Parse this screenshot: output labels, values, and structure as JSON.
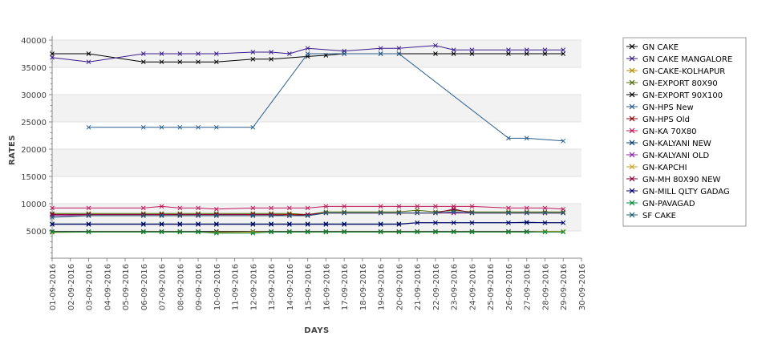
{
  "chart_data": {
    "type": "line",
    "xlabel": "DAYS",
    "ylabel": "RATES",
    "ylim": [
      0,
      40000
    ],
    "y_ticks": [
      5000,
      10000,
      15000,
      20000,
      25000,
      30000,
      35000,
      40000
    ],
    "x_tick_labels": [
      "01-09-2016",
      "02-09-2016",
      "03-09-2016",
      "04-09-2016",
      "05-09-2016",
      "06-09-2016",
      "07-09-2016",
      "08-09-2016",
      "09-09-2016",
      "10-09-2016",
      "11-09-2016",
      "12-09-2016",
      "13-09-2016",
      "14-09-2016",
      "15-09-2016",
      "16-09-2016",
      "17-09-2016",
      "18-09-2016",
      "19-09-2016",
      "20-09-2016",
      "21-09-2016",
      "22-09-2016",
      "23-09-2016",
      "24-09-2016",
      "25-09-2016",
      "26-09-2016",
      "27-09-2016",
      "28-09-2016",
      "29-09-2016",
      "30-09-2016"
    ],
    "grid": "alternating horizontal bands",
    "legend_position": "right",
    "series": [
      {
        "name": "GN CAKE",
        "color": "#000000",
        "days": [
          1,
          3,
          6,
          7,
          8,
          9,
          10,
          12,
          13,
          15,
          16,
          17,
          19,
          20,
          22,
          23,
          24,
          26,
          27,
          28,
          29
        ],
        "values": [
          37500,
          37500,
          36000,
          36000,
          36000,
          36000,
          36000,
          36500,
          36500,
          37000,
          37200,
          37500,
          37500,
          37500,
          37500,
          37500,
          37500,
          37500,
          37500,
          37500,
          37500
        ]
      },
      {
        "name": "GN CAKE MANGALORE",
        "color": "#3b1e8c",
        "days": [
          1,
          3,
          6,
          7,
          8,
          9,
          10,
          12,
          13,
          14,
          15,
          17,
          19,
          20,
          22,
          23,
          24,
          26,
          27,
          28,
          29
        ],
        "values": [
          36800,
          36000,
          37500,
          37500,
          37500,
          37500,
          37500,
          37800,
          37800,
          37500,
          38500,
          38000,
          38500,
          38500,
          39000,
          38200,
          38200,
          38200,
          38200,
          38200,
          38200
        ]
      },
      {
        "name": "GN-CAKE-KOLHAPUR",
        "color": "#b58a00",
        "days": [
          1,
          3,
          6,
          7,
          8,
          9,
          10,
          12,
          13,
          14,
          15,
          16,
          17,
          19,
          20,
          21,
          22,
          23,
          24,
          26,
          27,
          28,
          29
        ],
        "values": [
          4800,
          4800,
          4800,
          4800,
          4800,
          4800,
          4800,
          4800,
          4800,
          4800,
          4800,
          4800,
          4800,
          4800,
          4800,
          4800,
          4800,
          4800,
          4800,
          4800,
          4800,
          4900,
          4900
        ]
      },
      {
        "name": "GN-EXPORT 80X90",
        "color": "#4c6b00",
        "days": [
          1,
          3,
          6,
          7,
          8,
          9,
          10,
          12,
          13,
          14,
          15,
          16,
          17,
          19,
          20,
          21,
          22,
          23,
          24,
          26,
          27,
          28,
          29
        ],
        "values": [
          8200,
          8200,
          8200,
          8200,
          8200,
          8200,
          8200,
          8200,
          8200,
          8200,
          8000,
          8500,
          8500,
          8500,
          8500,
          8800,
          8500,
          8800,
          8500,
          8500,
          8500,
          8500,
          8500
        ]
      },
      {
        "name": "GN-EXPORT 90X100",
        "color": "#000000",
        "days": [
          1,
          3,
          6,
          7,
          8,
          9,
          10,
          12,
          13,
          14,
          15,
          16,
          17,
          19,
          20,
          21,
          22,
          23,
          24,
          26,
          27,
          28,
          29
        ],
        "values": [
          4900,
          4900,
          4900,
          4900,
          4900,
          4900,
          4900,
          4900,
          4900,
          4900,
          4900,
          4900,
          4900,
          4900,
          4900,
          4900,
          4900,
          4900,
          4900,
          4900,
          4900,
          4900,
          4900
        ]
      },
      {
        "name": "GN-HPS New",
        "color": "#2a5d8f",
        "days": [
          3,
          6,
          7,
          8,
          9,
          10,
          12,
          15,
          17,
          19,
          20,
          26,
          27,
          29
        ],
        "values": [
          24000,
          24000,
          24000,
          24000,
          24000,
          24000,
          24000,
          37500,
          37500,
          37500,
          37500,
          22000,
          22000,
          21500
        ]
      },
      {
        "name": "GN-HPS Old",
        "color": "#8b0000",
        "days": [
          1,
          3,
          6,
          7,
          8,
          9,
          10,
          12,
          13,
          14,
          15,
          16,
          17,
          19,
          20,
          21,
          22,
          23,
          24,
          26,
          27,
          28,
          29
        ],
        "values": [
          8000,
          8000,
          8000,
          8000,
          8000,
          8000,
          8000,
          8000,
          8000,
          8000,
          8000,
          8300,
          8300,
          8300,
          8300,
          8300,
          8300,
          8300,
          8300,
          8300,
          8300,
          8300,
          8300
        ]
      },
      {
        "name": "GN-KA 70X80",
        "color": "#c2185b",
        "days": [
          1,
          3,
          6,
          7,
          8,
          9,
          10,
          12,
          13,
          14,
          15,
          16,
          17,
          19,
          20,
          21,
          22,
          23,
          24,
          26,
          27,
          28,
          29
        ],
        "values": [
          9200,
          9200,
          9200,
          9500,
          9200,
          9200,
          9000,
          9200,
          9200,
          9200,
          9200,
          9500,
          9500,
          9500,
          9500,
          9500,
          9500,
          9500,
          9500,
          9200,
          9200,
          9200,
          9000
        ]
      },
      {
        "name": "GN-KALYANI NEW",
        "color": "#003a70",
        "days": [
          1,
          3,
          6,
          7,
          8,
          9,
          10,
          12,
          13,
          14,
          15,
          16,
          17,
          19,
          20,
          21,
          22,
          23,
          24,
          26,
          27,
          28,
          29
        ],
        "values": [
          6300,
          6300,
          6300,
          6300,
          6300,
          6300,
          6300,
          6300,
          6300,
          6300,
          6300,
          6300,
          6300,
          6300,
          6300,
          6500,
          6500,
          6500,
          6500,
          6500,
          6500,
          6500,
          6500
        ]
      },
      {
        "name": "GN-KALYANI OLD",
        "color": "#8e24aa",
        "days": [
          1,
          3,
          6,
          7,
          8,
          9,
          10,
          12,
          13,
          14,
          15,
          16,
          17,
          19,
          20,
          21,
          22,
          23,
          24,
          26,
          27,
          28,
          29
        ],
        "values": [
          7800,
          7800,
          7800,
          7800,
          7800,
          7800,
          7800,
          7800,
          7800,
          7800,
          7800,
          8300,
          8300,
          8300,
          8300,
          8300,
          8300,
          8300,
          8300,
          8300,
          8300,
          8300,
          8300
        ]
      },
      {
        "name": "GN-KAPCHI",
        "color": "#c9a227",
        "days": [
          1,
          3,
          6,
          7,
          8,
          9,
          10,
          12,
          13,
          14,
          15,
          16,
          17,
          19,
          20,
          21,
          22,
          23,
          24,
          26,
          27,
          28,
          29
        ],
        "values": [
          4700,
          4800,
          4800,
          4800,
          4800,
          4800,
          4700,
          4800,
          4800,
          4800,
          4800,
          4800,
          4800,
          4800,
          4800,
          4800,
          4800,
          4800,
          4800,
          4800,
          4800,
          4900,
          4900
        ]
      },
      {
        "name": "GN-MH 80X90 NEW",
        "color": "#8b0038",
        "days": [
          1,
          3,
          6,
          7,
          8,
          9,
          10,
          12,
          13,
          14,
          15,
          16,
          17,
          19,
          20,
          21,
          22,
          23,
          24,
          26,
          27,
          28,
          29
        ],
        "values": [
          8000,
          8000,
          8000,
          8000,
          8000,
          8000,
          8000,
          8000,
          8000,
          7800,
          8000,
          8300,
          8300,
          8300,
          8300,
          8300,
          8300,
          9000,
          8300,
          8300,
          8300,
          8300,
          8300
        ]
      },
      {
        "name": "GN-MILL QLTY GADAG",
        "color": "#000066",
        "days": [
          1,
          3,
          6,
          7,
          8,
          9,
          10,
          12,
          13,
          14,
          15,
          16,
          17,
          19,
          20,
          21,
          22,
          23,
          24,
          26,
          27,
          28,
          29
        ],
        "values": [
          6200,
          6200,
          6200,
          6200,
          6200,
          6200,
          6200,
          6200,
          6200,
          6200,
          6200,
          6200,
          6200,
          6200,
          6200,
          6500,
          6500,
          6500,
          6500,
          6500,
          6600,
          6500,
          6500
        ]
      },
      {
        "name": "GN-PAVAGAD",
        "color": "#008a3a",
        "days": [
          1,
          3,
          6,
          7,
          8,
          9,
          10,
          12,
          13,
          14,
          15,
          16,
          17,
          19,
          20,
          21,
          22,
          23,
          24,
          26,
          27,
          28,
          29
        ],
        "values": [
          4800,
          4800,
          4800,
          4800,
          4800,
          4800,
          4600,
          4600,
          4800,
          4800,
          4800,
          4800,
          4800,
          4800,
          4800,
          4800,
          4800,
          4800,
          4800,
          4800,
          4800,
          4800,
          4800
        ]
      },
      {
        "name": "SF CAKE",
        "color": "#1f5f7a",
        "days": [
          1,
          3,
          6,
          7,
          8,
          9,
          10,
          12,
          13,
          14,
          15,
          16,
          17,
          19,
          20,
          21,
          22,
          23,
          24,
          26,
          27,
          28,
          29
        ],
        "values": [
          7500,
          7800,
          7800,
          7800,
          7800,
          7800,
          7800,
          7800,
          7800,
          7800,
          7800,
          8300,
          8300,
          8300,
          8300,
          8300,
          8300,
          8500,
          8300,
          8300,
          8300,
          8300,
          8300
        ]
      }
    ]
  }
}
